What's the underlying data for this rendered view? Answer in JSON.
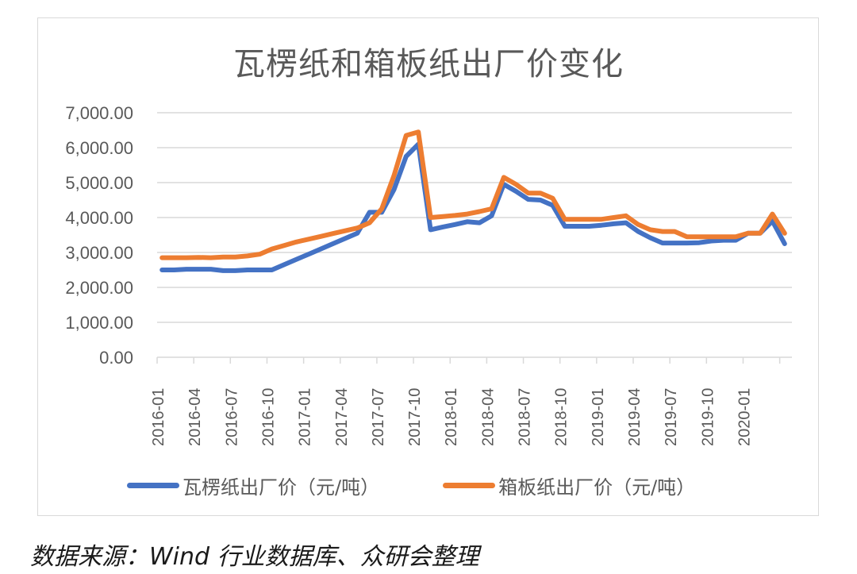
{
  "source_note": "数据来源：Wind 行业数据库、众研会整理",
  "colors": {
    "series_1": "#4472C4",
    "series_2": "#ED7D31",
    "grid": "#d9d9d9",
    "text": "#595959"
  },
  "chart_data": {
    "type": "line",
    "title": "瓦楞纸和箱板纸出厂价变化",
    "xlabel": "",
    "ylabel": "",
    "ylim": [
      0,
      7000
    ],
    "yticks": [
      "0.00",
      "1,000.00",
      "2,000.00",
      "3,000.00",
      "4,000.00",
      "5,000.00",
      "6,000.00",
      "7,000.00"
    ],
    "xtick_labels": [
      "2016-01",
      "2016-04",
      "2016-07",
      "2016-10",
      "2017-01",
      "2017-04",
      "2017-07",
      "2017-10",
      "2018-01",
      "2018-04",
      "2018-07",
      "2018-10",
      "2019-01",
      "2019-04",
      "2019-07",
      "2019-10",
      "2020-01"
    ],
    "grid": true,
    "legend_position": "bottom",
    "x": [
      "2016-01",
      "2016-02",
      "2016-03",
      "2016-04",
      "2016-05",
      "2016-06",
      "2016-07",
      "2016-08",
      "2016-09",
      "2016-10",
      "2016-11",
      "2016-12",
      "2017-01",
      "2017-02",
      "2017-03",
      "2017-04",
      "2017-05",
      "2017-06",
      "2017-07",
      "2017-08",
      "2017-09",
      "2017-10",
      "2017-11",
      "2017-12",
      "2018-01",
      "2018-02",
      "2018-03",
      "2018-04",
      "2018-05",
      "2018-06",
      "2018-07",
      "2018-08",
      "2018-09",
      "2018-10",
      "2018-11",
      "2018-12",
      "2019-01",
      "2019-02",
      "2019-03",
      "2019-04",
      "2019-05",
      "2019-06",
      "2019-07",
      "2019-08",
      "2019-09",
      "2019-10",
      "2019-11",
      "2019-12",
      "2020-01",
      "2020-02",
      "2020-03",
      "2020-04"
    ],
    "series": [
      {
        "name": "瓦楞纸出厂价（元/吨）",
        "color": "#4472C4",
        "values": [
          2500,
          2500,
          2520,
          2520,
          2520,
          2480,
          2480,
          2500,
          2500,
          2500,
          2650,
          2800,
          2950,
          3100,
          3250,
          3400,
          3550,
          4150,
          4150,
          4800,
          5750,
          6100,
          3650,
          3730,
          3800,
          3880,
          3850,
          4050,
          4950,
          4750,
          4520,
          4500,
          4350,
          3750,
          3750,
          3750,
          3780,
          3820,
          3850,
          3600,
          3420,
          3270,
          3270,
          3270,
          3280,
          3330,
          3350,
          3350,
          3550,
          3550,
          3900,
          3250
        ]
      },
      {
        "name": "箱板纸出厂价（元/吨）",
        "color": "#ED7D31",
        "values": [
          2850,
          2850,
          2850,
          2860,
          2850,
          2870,
          2870,
          2900,
          2950,
          3100,
          3200,
          3300,
          3380,
          3460,
          3540,
          3620,
          3700,
          3850,
          4250,
          5200,
          6350,
          6450,
          4000,
          4030,
          4060,
          4100,
          4170,
          4250,
          5150,
          4950,
          4700,
          4700,
          4550,
          3950,
          3950,
          3950,
          3950,
          4000,
          4050,
          3800,
          3650,
          3600,
          3600,
          3450,
          3450,
          3450,
          3450,
          3450,
          3550,
          3550,
          4100,
          3550
        ]
      }
    ]
  }
}
